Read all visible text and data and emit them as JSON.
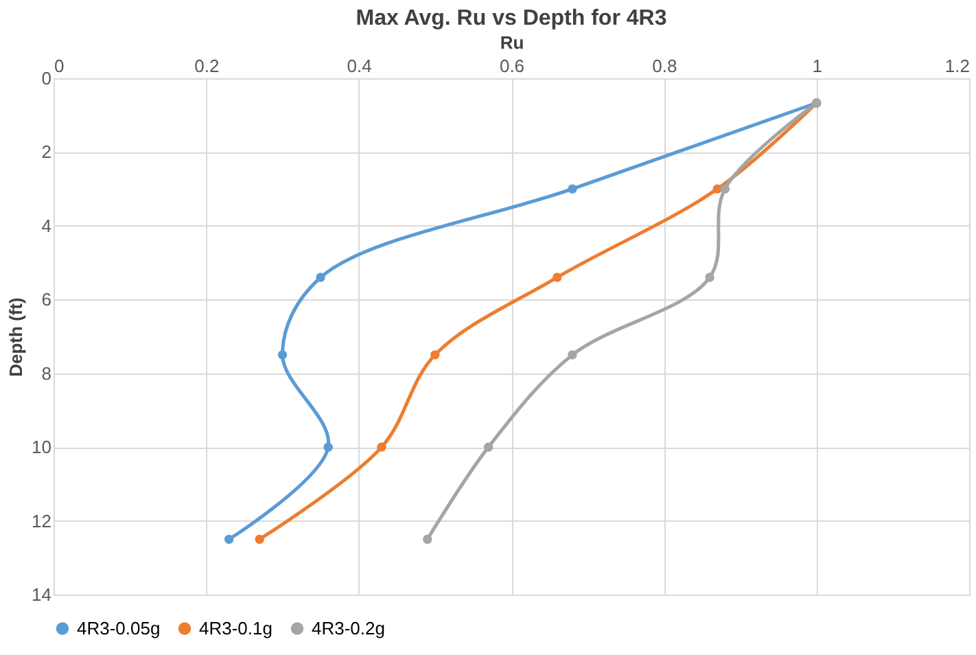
{
  "chart_data": {
    "type": "line",
    "title": "Max Avg. Ru vs Depth for 4R3",
    "xlabel": "Ru",
    "ylabel": "Depth (ft)",
    "xlim": [
      0,
      1.2
    ],
    "xticks": [
      0,
      0.2,
      0.4,
      0.6,
      0.8,
      1,
      1.2
    ],
    "ylim": [
      14,
      0
    ],
    "yticks": [
      0,
      2,
      4,
      6,
      8,
      10,
      12,
      14
    ],
    "grid": true,
    "legend": "bottom",
    "marker": "circle",
    "line_style": "solid",
    "series": [
      {
        "name": "4R3-0.05g",
        "color": "#5b9bd5",
        "x": [
          1.0,
          0.68,
          0.35,
          0.3,
          0.36,
          0.23
        ],
        "values": [
          0.67,
          3,
          5.4,
          7.5,
          10,
          12.5
        ]
      },
      {
        "name": "4R3-0.1g",
        "color": "#ed7d31",
        "x": [
          1.0,
          0.87,
          0.66,
          0.5,
          0.43,
          0.27
        ],
        "values": [
          0.67,
          3,
          5.4,
          7.5,
          10,
          12.5
        ]
      },
      {
        "name": "4R3-0.2g",
        "color": "#a5a5a5",
        "x": [
          1.0,
          0.88,
          0.86,
          0.68,
          0.57,
          0.49
        ],
        "values": [
          0.67,
          3,
          5.4,
          7.5,
          10,
          12.5
        ]
      }
    ]
  }
}
